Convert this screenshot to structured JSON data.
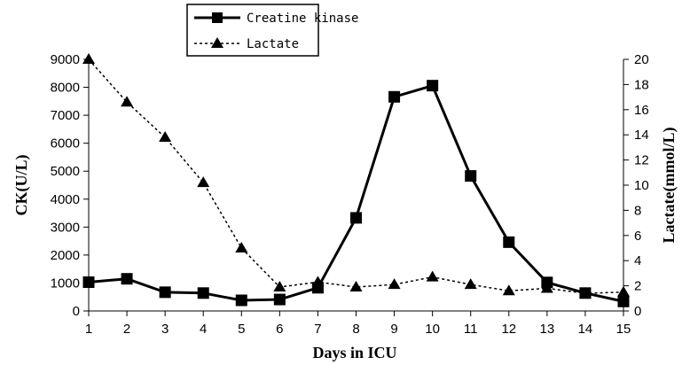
{
  "chart_data": {
    "type": "line",
    "title": "",
    "x": [
      1,
      2,
      3,
      4,
      5,
      6,
      7,
      8,
      9,
      10,
      11,
      12,
      13,
      14,
      15
    ],
    "x_ticks": [
      "1",
      "2",
      "3",
      "4",
      "5",
      "6",
      "7",
      "8",
      "9",
      "10",
      "11",
      "12",
      "13",
      "14",
      "15"
    ],
    "xlabel": "Days in ICU",
    "ylabel_left": "CK(U/L)",
    "ylabel_right": "Lactate(mmol/L)",
    "ylim_left": [
      0,
      9000
    ],
    "ylim_right": [
      0,
      20
    ],
    "yticks_left": [
      "0",
      "1000",
      "2000",
      "3000",
      "4000",
      "5000",
      "6000",
      "7000",
      "8000",
      "9000"
    ],
    "yticks_right": [
      "0",
      "2",
      "4",
      "6",
      "8",
      "10",
      "12",
      "14",
      "16",
      "18",
      "20"
    ],
    "grid": false,
    "legend_position": "top",
    "series": [
      {
        "name": "Creatine kinase",
        "axis": "left",
        "marker": "square",
        "line_style": "solid",
        "color": "#000000",
        "values": [
          1030,
          1150,
          670,
          640,
          380,
          410,
          830,
          3330,
          7660,
          8060,
          4830,
          2460,
          1020,
          640,
          340
        ]
      },
      {
        "name": "Lactate",
        "axis": "right",
        "marker": "triangle",
        "line_style": "dotted",
        "color": "#000000",
        "values": [
          20.0,
          16.6,
          13.8,
          10.2,
          5.0,
          1.9,
          2.3,
          1.9,
          2.1,
          2.7,
          2.1,
          1.6,
          1.8,
          1.4,
          1.5
        ]
      }
    ]
  }
}
